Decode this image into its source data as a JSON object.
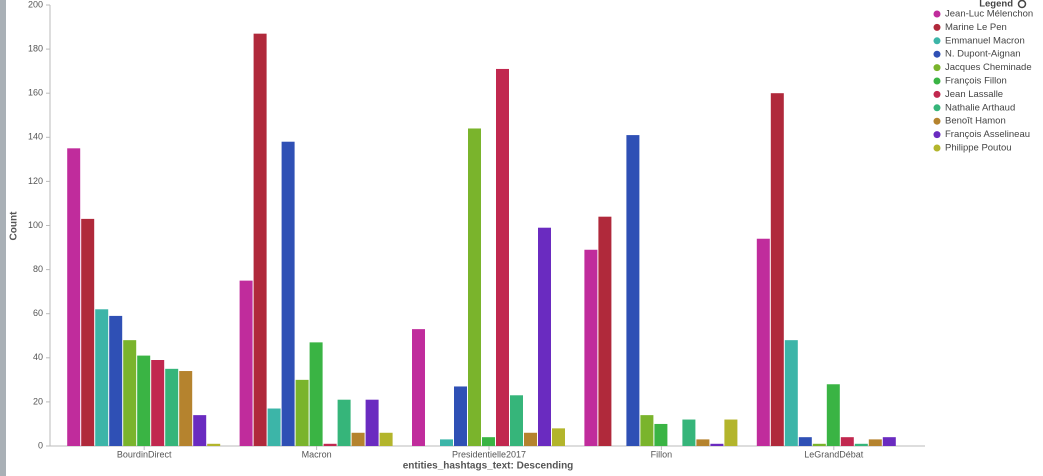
{
  "chart_data": {
    "type": "bar",
    "x_label": "entities_hashtags_text: Descending",
    "y_label": "Count",
    "legend_title": "Legend",
    "categories": [
      "BourdinDirect",
      "Macron",
      "Presidentielle2017",
      "Fillon",
      "LeGrandDébat"
    ],
    "ylim": [
      0,
      200
    ],
    "yticks": [
      0,
      20,
      40,
      60,
      80,
      100,
      120,
      140,
      160,
      180,
      200
    ],
    "series": [
      {
        "name": "Jean-Luc Mélenchon",
        "color": "#c02c9c",
        "values": [
          135,
          75,
          53,
          89,
          94
        ]
      },
      {
        "name": "Marine Le Pen",
        "color": "#b0293b",
        "values": [
          103,
          187,
          0,
          104,
          160
        ]
      },
      {
        "name": "Emmanuel Macron",
        "color": "#3cb5a8",
        "values": [
          62,
          17,
          3,
          0,
          48
        ]
      },
      {
        "name": "N. Dupont-Aignan",
        "color": "#2f50b5",
        "values": [
          59,
          138,
          27,
          141,
          4
        ]
      },
      {
        "name": "Jacques Cheminade",
        "color": "#7ab42c",
        "values": [
          48,
          30,
          144,
          14,
          1
        ]
      },
      {
        "name": "François Fillon",
        "color": "#3ab444",
        "values": [
          41,
          47,
          4,
          10,
          28
        ]
      },
      {
        "name": "Jean Lassalle",
        "color": "#c1284f",
        "values": [
          39,
          1,
          171,
          0,
          4
        ]
      },
      {
        "name": "Nathalie Arthaud",
        "color": "#36b57a",
        "values": [
          35,
          21,
          23,
          12,
          1
        ]
      },
      {
        "name": "Benoît Hamon",
        "color": "#b5832e",
        "values": [
          34,
          6,
          6,
          3,
          3
        ]
      },
      {
        "name": "François Asselineau",
        "color": "#6a2bc0",
        "values": [
          14,
          21,
          99,
          1,
          4
        ]
      },
      {
        "name": "Philippe Poutou",
        "color": "#b3b52c",
        "values": [
          1,
          6,
          8,
          12,
          0
        ]
      }
    ]
  }
}
